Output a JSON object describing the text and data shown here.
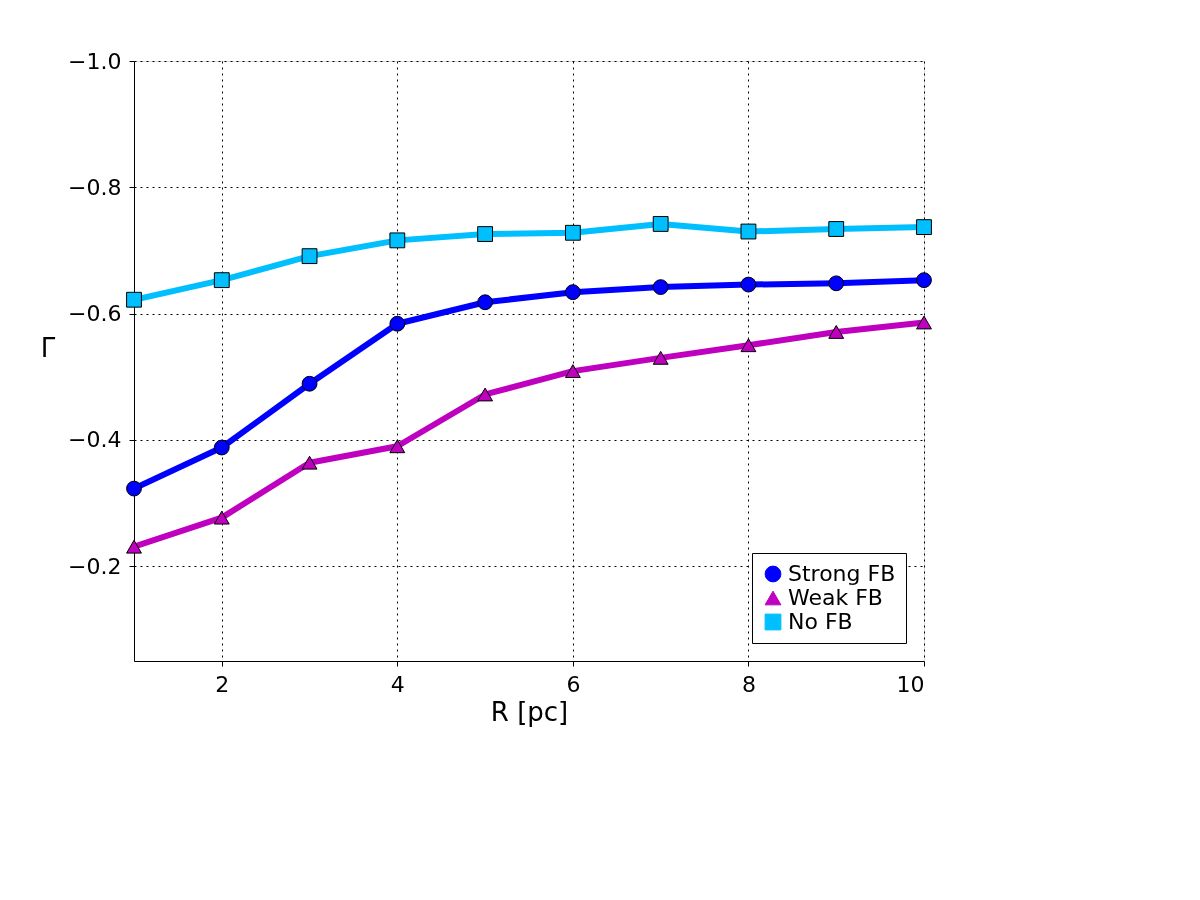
{
  "chart_data": {
    "type": "line",
    "xlabel": "R [pc]",
    "ylabel": "Γ",
    "x": [
      1,
      2,
      3,
      4,
      5,
      6,
      7,
      8,
      9,
      10
    ],
    "series": [
      {
        "name": "Strong FB",
        "color": "#0000ff",
        "marker": "circle",
        "values": [
          -0.323,
          -0.388,
          -0.489,
          -0.584,
          -0.618,
          -0.634,
          -0.642,
          -0.646,
          -0.648,
          -0.653
        ]
      },
      {
        "name": "Weak FB",
        "color": "#bf00bf",
        "marker": "triangle",
        "values": [
          -0.231,
          -0.277,
          -0.364,
          -0.39,
          -0.472,
          -0.509,
          -0.53,
          -0.55,
          -0.571,
          -0.586
        ]
      },
      {
        "name": "No FB",
        "color": "#00bfff",
        "marker": "square",
        "values": [
          -0.622,
          -0.653,
          -0.691,
          -0.716,
          -0.726,
          -0.728,
          -0.742,
          -0.73,
          -0.734,
          -0.737
        ]
      }
    ],
    "xlim": [
      1,
      10
    ],
    "xticks": [
      2,
      4,
      6,
      8,
      10
    ],
    "ylim": [
      -0.05,
      -1.0
    ],
    "yticks": [
      {
        "value": -1.0,
        "label": "−1.0"
      },
      {
        "value": -0.8,
        "label": "−0.8"
      },
      {
        "value": -0.6,
        "label": "−0.6"
      },
      {
        "value": -0.4,
        "label": "−0.4"
      },
      {
        "value": -0.2,
        "label": "−0.2"
      }
    ],
    "grid": true,
    "legend": "bottom right",
    "line_style": "solid"
  }
}
